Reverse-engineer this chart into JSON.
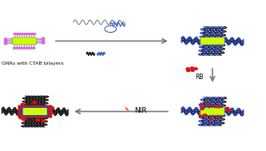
{
  "bg_color": "#ffffff",
  "gnr_color": "#ccff00",
  "ctab_color": "#dd66dd",
  "ctab_stem_color": "#888888",
  "peg_color": "#2244cc",
  "pnvcl_color": "#111111",
  "rb_color": "#dd1111",
  "blue_coat_color": "#2244cc",
  "red_coat_color": "#cc1111",
  "arrow_color": "#777777",
  "lightning_color": "#ff3300",
  "chem_gray": "#777777",
  "chem_blue": "#3355cc",
  "text_label": "GNRs with CTAB bilayers",
  "nir_label": "NIR",
  "rb_label": "RB",
  "panel_tl": [
    0.09,
    0.73
  ],
  "panel_tr": [
    0.8,
    0.73
  ],
  "panel_br": [
    0.8,
    0.26
  ],
  "panel_bl": [
    0.13,
    0.26
  ]
}
